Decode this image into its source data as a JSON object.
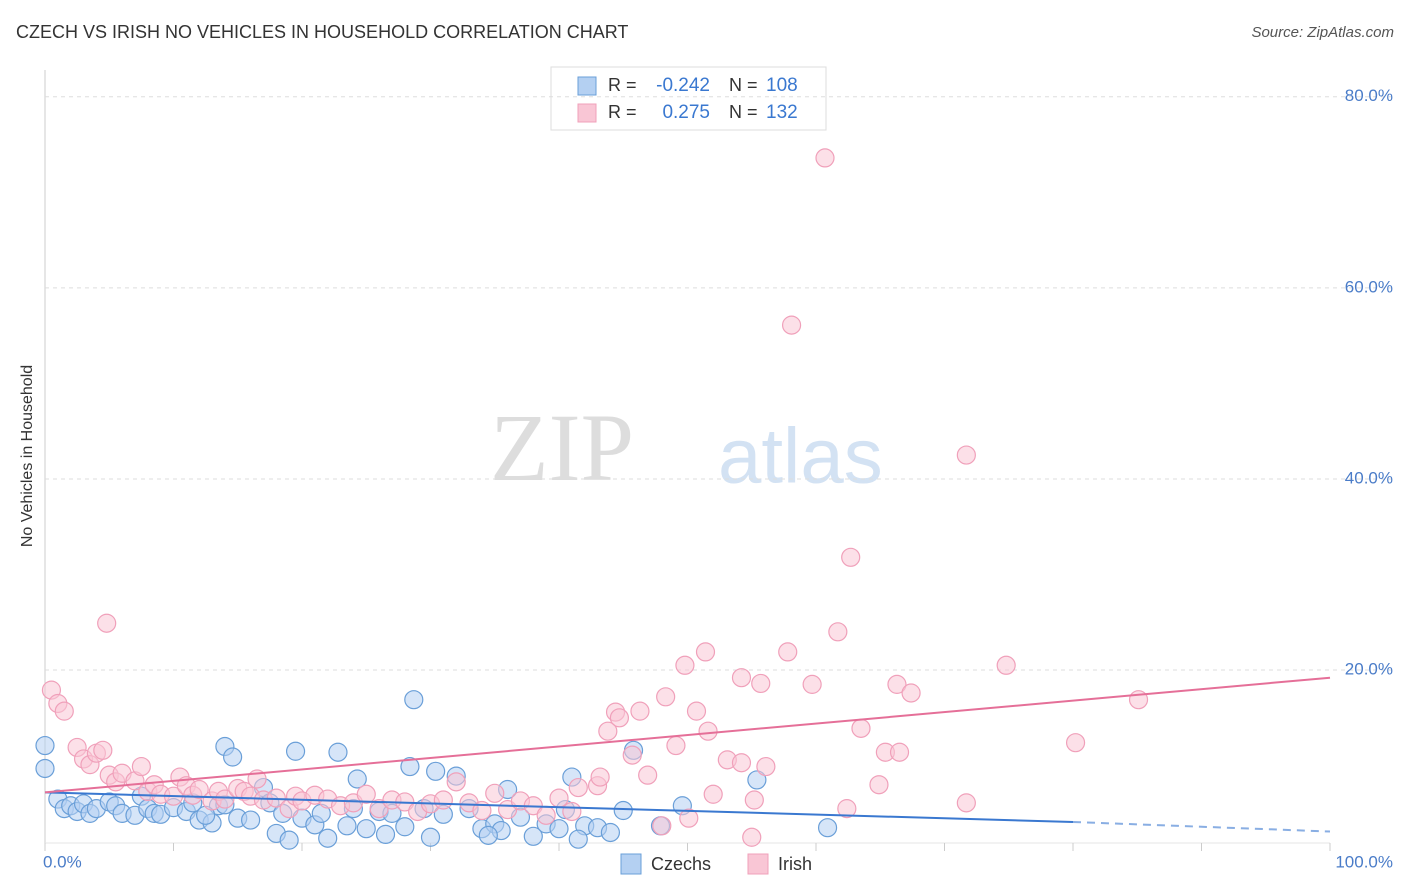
{
  "chart_data": {
    "type": "scatter",
    "title": "CZECH VS IRISH NO VEHICLES IN HOUSEHOLD CORRELATION CHART",
    "source": "Source: ZipAtlas.com",
    "y_label": "No Vehicles in Household",
    "watermark": [
      "ZIP",
      "atlas"
    ],
    "xlim": [
      0,
      100
    ],
    "ylim": [
      1.9,
      82.8
    ],
    "xticks": [
      {
        "value": 0,
        "label": "0.0%"
      },
      {
        "value": 100,
        "label": "100.0%"
      }
    ],
    "xminor_ticks": [
      10,
      20,
      30,
      40,
      50,
      60,
      70,
      80,
      90
    ],
    "yticks": [
      {
        "value": 20,
        "label": "20.0%"
      },
      {
        "value": 40,
        "label": "40.0%"
      },
      {
        "value": 60,
        "label": "60.0%"
      },
      {
        "value": 80,
        "label": "80.0%"
      }
    ],
    "grid": true,
    "legend": {
      "r_label": "R =",
      "n_label": "N =",
      "entries": [
        {
          "r": -0.242,
          "n": 108
        },
        {
          "r": 0.275,
          "n": 132
        }
      ]
    },
    "series": [
      {
        "name": "Czechs",
        "color": "#6a9fd8",
        "fill": "#b4d0f2",
        "trend_color": "#3a78d0",
        "x": [
          0,
          0,
          1,
          1.5,
          2,
          2.5,
          3,
          3.5,
          4,
          5,
          5.5,
          6,
          7,
          7.5,
          8,
          8.5,
          9,
          10,
          11,
          11.5,
          12,
          13,
          13.5,
          14,
          14,
          14.6,
          15,
          16,
          17,
          17.5,
          18,
          18.5,
          19.5,
          20,
          21,
          21.5,
          22,
          22.8,
          23.5,
          24,
          24.3,
          25,
          26,
          27,
          28,
          28.4,
          28.7,
          29.5,
          30,
          30.4,
          31,
          32,
          33,
          34,
          35,
          36,
          37,
          38,
          39,
          40,
          41,
          42,
          43,
          44,
          45,
          45.8,
          47.9,
          49.6,
          40.5,
          41.5,
          35.5,
          34.5,
          26.5,
          19,
          12.5,
          55.4,
          60.9
        ],
        "values": [
          12.1,
          9.7,
          6.5,
          5.5,
          5.8,
          5.2,
          6,
          5,
          5.5,
          6.2,
          5.8,
          5,
          4.8,
          6.8,
          5.5,
          5,
          4.9,
          5.6,
          5.2,
          6.1,
          4.3,
          4,
          5.8,
          5.9,
          12,
          10.9,
          4.5,
          4.3,
          7.7,
          6.1,
          2.9,
          5,
          11.5,
          4.5,
          3.8,
          5,
          2.4,
          11.4,
          3.7,
          5.5,
          8.6,
          3.4,
          5.2,
          5,
          3.6,
          9.9,
          16.9,
          5.5,
          2.5,
          9.4,
          4.9,
          8.9,
          5.5,
          3.4,
          3.9,
          7.5,
          4.6,
          2.6,
          3.9,
          3.4,
          8.8,
          3.7,
          3.5,
          3,
          5.3,
          11.6,
          3.7,
          5.8,
          5.4,
          2.3,
          3.2,
          2.7,
          2.8,
          2.2,
          4.8,
          8.5,
          3.5
        ],
        "trend": {
          "x": [
            0,
            80,
            100
          ],
          "values": [
            7.2,
            4.1,
            3.1
          ],
          "dashed_from": 1
        }
      },
      {
        "name": "Irish",
        "color": "#f0a0ba",
        "fill": "#f9c6d5",
        "trend_color": "#e56f98",
        "x": [
          0.5,
          1,
          1.5,
          2.5,
          3,
          3.5,
          4,
          4.5,
          4.8,
          5,
          5.5,
          6,
          7,
          7.5,
          8,
          8.5,
          9,
          10,
          10.5,
          11,
          11.5,
          12,
          13,
          13.5,
          14,
          15,
          15.5,
          16,
          16.5,
          17,
          18,
          19,
          19.5,
          20,
          21,
          22,
          23,
          24,
          25,
          26,
          27,
          28,
          29,
          30,
          31,
          32,
          33,
          34,
          35,
          36,
          37,
          38,
          39,
          40,
          41,
          41.5,
          43,
          43.2,
          43.8,
          44.4,
          44.7,
          45.7,
          46.3,
          46.9,
          48,
          48.3,
          49.1,
          49.8,
          50.1,
          50.7,
          51.4,
          51.6,
          52,
          53.1,
          54.2,
          54.2,
          55,
          55.2,
          55.7,
          56.1,
          57.8,
          58.1,
          59.7,
          60.7,
          61.7,
          62.4,
          62.7,
          63.5,
          64.9,
          65.4,
          66.3,
          66.5,
          67.4,
          71.7,
          71.7,
          74.8,
          80.2,
          85.1
        ],
        "values": [
          17.9,
          16.5,
          15.7,
          11.9,
          10.7,
          10.1,
          11.3,
          11.6,
          24.9,
          9,
          8.3,
          9.2,
          8.4,
          9.9,
          7.3,
          8,
          7,
          6.8,
          8.8,
          7.9,
          6.9,
          7.5,
          6.3,
          7.3,
          6.5,
          7.6,
          7.3,
          6.8,
          8.6,
          6.4,
          6.6,
          5.5,
          6.8,
          6.3,
          6.9,
          6.5,
          5.8,
          6.1,
          7,
          5.5,
          6.4,
          6.2,
          5.2,
          6,
          6.4,
          8.3,
          6.1,
          5.3,
          7.1,
          5.4,
          6.3,
          5.8,
          4.8,
          6.6,
          5.2,
          7.7,
          7.9,
          8.8,
          13.6,
          15.6,
          15,
          11.1,
          15.7,
          9,
          3.7,
          17.2,
          12.1,
          20.5,
          4.5,
          15.7,
          21.9,
          13.6,
          7,
          10.6,
          19.2,
          10.3,
          2.5,
          6.4,
          18.6,
          9.9,
          21.9,
          56.1,
          18.5,
          73.6,
          24,
          5.5,
          31.8,
          13.9,
          8,
          11.4,
          18.5,
          11.4,
          17.6,
          42.5,
          6.1,
          20.5,
          12.4,
          16.9
        ],
        "trend": {
          "x": [
            0,
            100
          ],
          "values": [
            7.2,
            19.2
          ]
        }
      }
    ]
  }
}
